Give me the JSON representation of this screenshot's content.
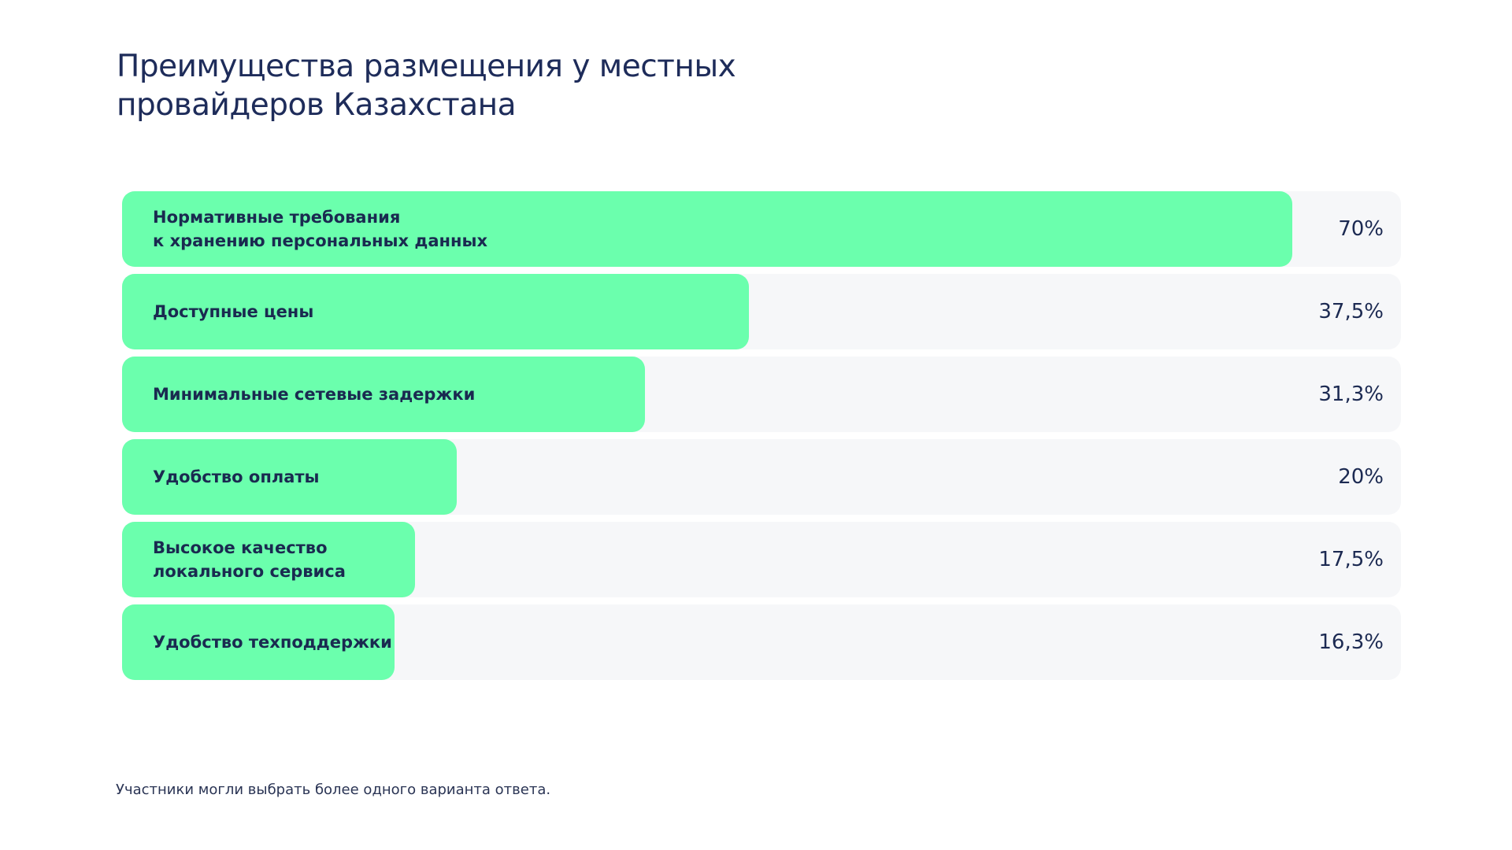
{
  "chart_data": {
    "type": "bar",
    "orientation": "horizontal",
    "title": "Преимущества размещения у местных провайдеров Казахстана",
    "categories": [
      "Нормативные требования\nк хранению персональных данных",
      "Доступные цены",
      "Минимальные сетевые задержки",
      "Удобство оплаты",
      "Высокое качество\nлокального сервиса",
      "Удобство техподдержки"
    ],
    "values": [
      70,
      37.5,
      31.3,
      20,
      17.5,
      16.3
    ],
    "value_labels": [
      "70%",
      "37,5%",
      "31,3%",
      "20%",
      "17,5%",
      "16,3%"
    ],
    "unit": "%",
    "xlim": [
      0,
      76.5
    ],
    "grid": false,
    "legend": "none",
    "colors": {
      "bar": "#6bffad",
      "track": "#f6f7f9",
      "text": "#1c2a52"
    }
  },
  "footnote": "Участники могли выбрать более одного варианта ответа."
}
